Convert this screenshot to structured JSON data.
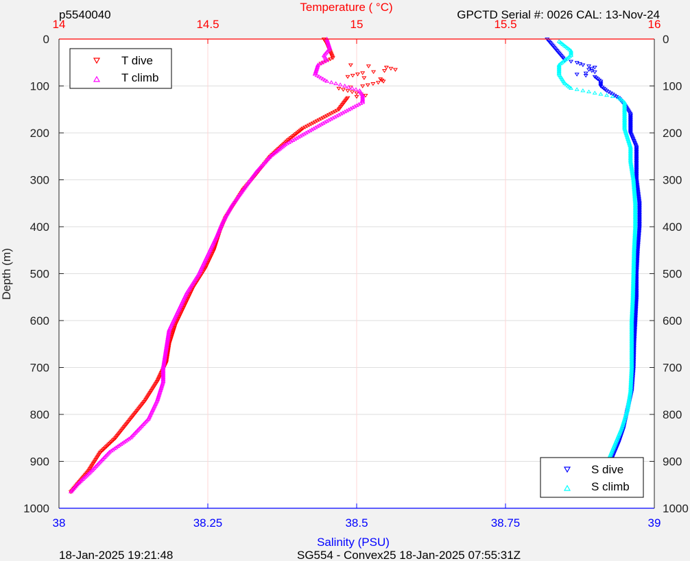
{
  "header": {
    "profile_id": "p5540040",
    "instrument": "GPCTD Serial #: 0026 CAL: 13-Nov-24"
  },
  "footer": {
    "plot_time": "18-Jan-2025 19:21:48",
    "mission": "SG554 - Convex25 18-Jan-2025 07:55:31Z"
  },
  "chart_data": {
    "type": "scatter",
    "y_axis": {
      "label": "Depth (m)",
      "range": [
        0,
        1000
      ],
      "reversed": true,
      "ticks": [
        0,
        100,
        200,
        300,
        400,
        500,
        600,
        700,
        800,
        900,
        1000
      ]
    },
    "x_top": {
      "label": "Temperature (    °C)",
      "range": [
        14,
        16
      ],
      "ticks": [
        "14",
        "14.5",
        "15",
        "15.5",
        "16"
      ],
      "tick_values": [
        14,
        14.5,
        15,
        15.5,
        16
      ],
      "color": "#ff0000"
    },
    "x_bottom": {
      "label": "Salinity (PSU)",
      "range": [
        38,
        39
      ],
      "ticks": [
        "38",
        "38.25",
        "38.5",
        "38.75",
        "39"
      ],
      "tick_values": [
        38,
        38.25,
        38.5,
        38.75,
        39
      ],
      "color": "#0000ff"
    },
    "grid": true,
    "legends": [
      {
        "placement": "top-left",
        "entries": [
          "T dive",
          "T climb"
        ]
      },
      {
        "placement": "bottom-right",
        "entries": [
          "S dive",
          "S climb"
        ]
      }
    ],
    "series": [
      {
        "name": "T dive",
        "axis": "temperature",
        "color": "#ff0000",
        "marker": "triangle-down",
        "points": [
          [
            14.89,
            0
          ],
          [
            14.9,
            10
          ],
          [
            14.91,
            25
          ],
          [
            14.92,
            40
          ],
          [
            14.88,
            52
          ],
          [
            14.98,
            55
          ],
          [
            15.1,
            60
          ],
          [
            15.13,
            65
          ],
          [
            15.02,
            72
          ],
          [
            14.97,
            80
          ],
          [
            15.08,
            85
          ],
          [
            15.09,
            90
          ],
          [
            15.02,
            100
          ],
          [
            14.94,
            105
          ],
          [
            15.0,
            115
          ],
          [
            15.03,
            120
          ],
          [
            14.97,
            125
          ],
          [
            14.94,
            150
          ],
          [
            14.88,
            170
          ],
          [
            14.82,
            190
          ],
          [
            14.77,
            215
          ],
          [
            14.71,
            250
          ],
          [
            14.66,
            290
          ],
          [
            14.62,
            320
          ],
          [
            14.59,
            350
          ],
          [
            14.56,
            380
          ],
          [
            14.54,
            410
          ],
          [
            14.52,
            450
          ],
          [
            14.49,
            490
          ],
          [
            14.45,
            530
          ],
          [
            14.42,
            570
          ],
          [
            14.39,
            610
          ],
          [
            14.37,
            650
          ],
          [
            14.36,
            690
          ],
          [
            14.33,
            730
          ],
          [
            14.29,
            770
          ],
          [
            14.24,
            810
          ],
          [
            14.19,
            850
          ],
          [
            14.14,
            880
          ],
          [
            14.1,
            920
          ],
          [
            14.06,
            950
          ],
          [
            14.04,
            965
          ]
        ]
      },
      {
        "name": "T climb",
        "axis": "temperature",
        "color": "#ff00ff",
        "marker": "triangle-up",
        "points": [
          [
            14.9,
            0
          ],
          [
            14.91,
            20
          ],
          [
            14.89,
            35
          ],
          [
            14.9,
            45
          ],
          [
            14.87,
            55
          ],
          [
            14.86,
            75
          ],
          [
            14.9,
            90
          ],
          [
            14.96,
            100
          ],
          [
            15.01,
            110
          ],
          [
            15.02,
            120
          ],
          [
            15.02,
            135
          ],
          [
            14.96,
            155
          ],
          [
            14.9,
            175
          ],
          [
            14.83,
            200
          ],
          [
            14.76,
            225
          ],
          [
            14.71,
            250
          ],
          [
            14.66,
            285
          ],
          [
            14.62,
            320
          ],
          [
            14.58,
            355
          ],
          [
            14.55,
            390
          ],
          [
            14.53,
            420
          ],
          [
            14.5,
            460
          ],
          [
            14.47,
            500
          ],
          [
            14.43,
            540
          ],
          [
            14.4,
            580
          ],
          [
            14.37,
            620
          ],
          [
            14.36,
            660
          ],
          [
            14.35,
            700
          ],
          [
            14.35,
            730
          ],
          [
            14.33,
            770
          ],
          [
            14.3,
            810
          ],
          [
            14.24,
            850
          ],
          [
            14.17,
            880
          ],
          [
            14.11,
            920
          ],
          [
            14.06,
            950
          ],
          [
            14.04,
            965
          ]
        ]
      },
      {
        "name": "S dive",
        "axis": "salinity",
        "color": "#0000ff",
        "marker": "triangle-down",
        "points": [
          [
            38.82,
            0
          ],
          [
            38.83,
            15
          ],
          [
            38.84,
            30
          ],
          [
            38.85,
            45
          ],
          [
            38.87,
            50
          ],
          [
            38.88,
            55
          ],
          [
            38.9,
            60
          ],
          [
            38.89,
            65
          ],
          [
            38.9,
            70
          ],
          [
            38.87,
            75
          ],
          [
            38.9,
            80
          ],
          [
            38.91,
            90
          ],
          [
            38.91,
            100
          ],
          [
            38.92,
            110
          ],
          [
            38.94,
            125
          ],
          [
            38.95,
            140
          ],
          [
            38.96,
            160
          ],
          [
            38.96,
            180
          ],
          [
            38.96,
            200
          ],
          [
            38.97,
            230
          ],
          [
            38.97,
            270
          ],
          [
            38.97,
            300
          ],
          [
            38.975,
            350
          ],
          [
            38.975,
            400
          ],
          [
            38.972,
            450
          ],
          [
            38.97,
            500
          ],
          [
            38.97,
            550
          ],
          [
            38.968,
            600
          ],
          [
            38.966,
            650
          ],
          [
            38.965,
            700
          ],
          [
            38.962,
            750
          ],
          [
            38.955,
            790
          ],
          [
            38.948,
            830
          ],
          [
            38.94,
            860
          ],
          [
            38.93,
            890
          ],
          [
            38.92,
            920
          ],
          [
            38.91,
            945
          ],
          [
            38.905,
            965
          ]
        ]
      },
      {
        "name": "S climb",
        "axis": "salinity",
        "color": "#00ffff",
        "marker": "triangle-up",
        "points": [
          [
            38.84,
            5
          ],
          [
            38.86,
            25
          ],
          [
            38.86,
            35
          ],
          [
            38.84,
            55
          ],
          [
            38.84,
            75
          ],
          [
            38.85,
            95
          ],
          [
            38.86,
            105
          ],
          [
            38.9,
            115
          ],
          [
            38.94,
            125
          ],
          [
            38.95,
            135
          ],
          [
            38.95,
            160
          ],
          [
            38.95,
            190
          ],
          [
            38.955,
            210
          ],
          [
            38.96,
            230
          ],
          [
            38.96,
            260
          ],
          [
            38.965,
            300
          ],
          [
            38.968,
            350
          ],
          [
            38.968,
            400
          ],
          [
            38.966,
            450
          ],
          [
            38.965,
            500
          ],
          [
            38.964,
            550
          ],
          [
            38.962,
            600
          ],
          [
            38.962,
            650
          ],
          [
            38.962,
            700
          ],
          [
            38.96,
            750
          ],
          [
            38.955,
            790
          ],
          [
            38.945,
            830
          ],
          [
            38.935,
            860
          ],
          [
            38.925,
            890
          ],
          [
            38.915,
            920
          ],
          [
            38.91,
            945
          ],
          [
            38.905,
            965
          ]
        ]
      }
    ]
  }
}
